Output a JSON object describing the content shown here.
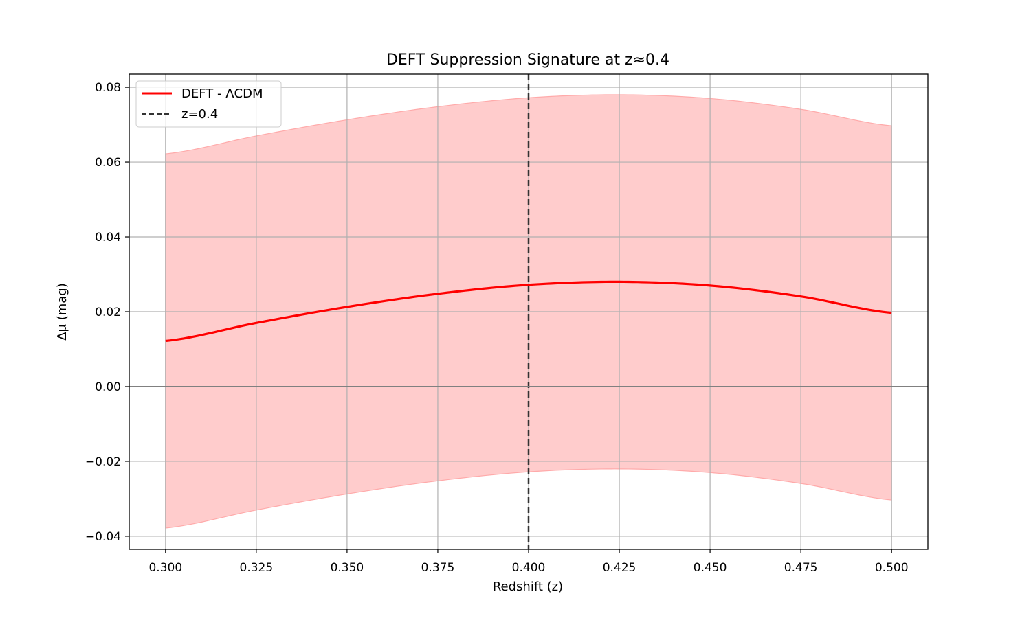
{
  "chart_data": {
    "type": "line",
    "title": "DEFT Suppression Signature at z≈0.4",
    "xlabel": "Redshift (z)",
    "ylabel": "Δμ (mag)",
    "xlim": [
      0.29,
      0.51
    ],
    "ylim": [
      -0.0435,
      0.0835
    ],
    "xticks": [
      0.3,
      0.325,
      0.35,
      0.375,
      0.4,
      0.425,
      0.45,
      0.475,
      0.5
    ],
    "xtick_labels": [
      "0.300",
      "0.325",
      "0.350",
      "0.375",
      "0.400",
      "0.425",
      "0.450",
      "0.475",
      "0.500"
    ],
    "yticks": [
      -0.04,
      -0.02,
      0.0,
      0.02,
      0.04,
      0.06,
      0.08
    ],
    "ytick_labels": [
      "−0.04",
      "−0.02",
      "0.00",
      "0.02",
      "0.04",
      "0.06",
      "0.08"
    ],
    "grid": true,
    "legend_position": "top-left",
    "series": [
      {
        "name": "DEFT - ΛCDM",
        "color": "#ff0000",
        "style": "solid",
        "band_half_width": 0.05,
        "band_color": "#ffcccc",
        "x": [
          0.3,
          0.325,
          0.35,
          0.375,
          0.4,
          0.425,
          0.45,
          0.475,
          0.5
        ],
        "y": [
          0.0122,
          0.017,
          0.0213,
          0.0248,
          0.0272,
          0.028,
          0.027,
          0.0241,
          0.0197
        ]
      }
    ],
    "reference_lines": [
      {
        "type": "vertical",
        "x": 0.4,
        "name": "z=0.4",
        "color": "#333333",
        "style": "dashed"
      },
      {
        "type": "horizontal",
        "y": 0.0,
        "color": "#808080",
        "style": "solid"
      }
    ]
  }
}
